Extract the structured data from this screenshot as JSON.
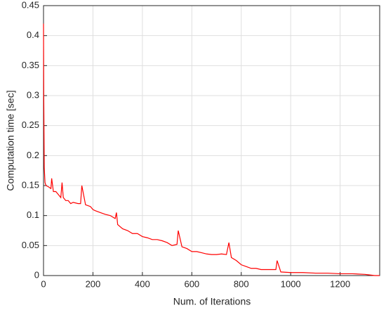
{
  "chart_data": {
    "type": "line",
    "xlabel": "Num. of Iterations",
    "ylabel": "Computation time [sec]",
    "x": [
      0,
      1,
      3,
      6,
      10,
      20,
      30,
      33,
      40,
      50,
      60,
      70,
      75,
      80,
      90,
      100,
      110,
      120,
      140,
      150,
      155,
      170,
      190,
      200,
      210,
      230,
      250,
      270,
      290,
      295,
      300,
      320,
      340,
      360,
      380,
      400,
      420,
      440,
      460,
      480,
      500,
      520,
      540,
      545,
      560,
      580,
      600,
      620,
      640,
      660,
      680,
      700,
      720,
      740,
      750,
      760,
      780,
      800,
      820,
      840,
      860,
      880,
      900,
      940,
      945,
      960,
      1000,
      1050,
      1100,
      1150,
      1200,
      1250,
      1300,
      1320,
      1340,
      1360
    ],
    "series": [
      {
        "color": "#ff0000",
        "values": [
          0.42,
          0.3,
          0.18,
          0.155,
          0.15,
          0.148,
          0.145,
          0.162,
          0.14,
          0.14,
          0.135,
          0.13,
          0.155,
          0.13,
          0.125,
          0.125,
          0.12,
          0.122,
          0.12,
          0.12,
          0.15,
          0.118,
          0.115,
          0.11,
          0.108,
          0.105,
          0.102,
          0.1,
          0.095,
          0.105,
          0.085,
          0.078,
          0.075,
          0.07,
          0.07,
          0.065,
          0.063,
          0.06,
          0.06,
          0.058,
          0.055,
          0.05,
          0.052,
          0.075,
          0.048,
          0.045,
          0.04,
          0.04,
          0.038,
          0.036,
          0.035,
          0.035,
          0.036,
          0.035,
          0.055,
          0.03,
          0.025,
          0.018,
          0.015,
          0.012,
          0.012,
          0.01,
          0.01,
          0.01,
          0.025,
          0.006,
          0.005,
          0.005,
          0.004,
          0.004,
          0.003,
          0.003,
          0.002,
          0.001,
          0,
          0
        ]
      }
    ],
    "xlim": [
      0,
      1360
    ],
    "xticks": [
      0,
      200,
      400,
      600,
      800,
      1000,
      1200
    ],
    "ylim": [
      0,
      0.45
    ],
    "yticks": [
      0,
      0.05,
      0.1,
      0.15,
      0.2,
      0.25,
      0.3,
      0.35,
      0.4,
      0.45
    ],
    "grid": true
  }
}
